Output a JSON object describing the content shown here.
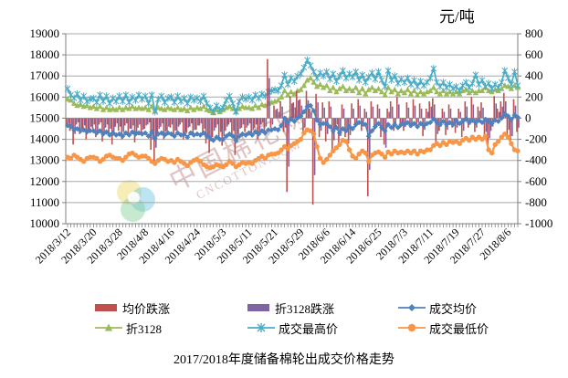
{
  "unit_label": "元/吨",
  "title": "2017/2018年度储备棉轮出成交价格走势",
  "watermark": {
    "cn": "中国棉花网",
    "en": "CNCOTTON.COM"
  },
  "colors": {
    "avg_change": "#C0504D",
    "zhe3128_change": "#8064A2",
    "avg_price": "#4F81BD",
    "zhe3128": "#9BBB59",
    "max_price": "#4BACC6",
    "min_price": "#F79646",
    "gridline": "#a8a8a8",
    "axis": "#7f7f7f"
  },
  "chart_data": {
    "type": "line+bar",
    "title": "2017/2018年度储备棉轮出成交价格走势",
    "unit": "元/吨",
    "grid": true,
    "legend_position": "bottom",
    "left_axis": {
      "min": 10000,
      "max": 19000,
      "step": 1000,
      "ticks": [
        19000,
        18000,
        17000,
        16000,
        15000,
        14000,
        13000,
        12000,
        11000,
        10000
      ]
    },
    "right_axis": {
      "min": -1000,
      "max": 800,
      "step": 200,
      "ticks": [
        800,
        600,
        400,
        200,
        0,
        -200,
        -400,
        -600,
        -800,
        -1000
      ]
    },
    "x_labels": [
      "2018/3/12",
      "2018/3/20",
      "2018/3/28",
      "2018/4/8",
      "2018/4/16",
      "2018/4/24",
      "2018/5/3",
      "2018/5/11",
      "2018/5/21",
      "2018/5/29",
      "2018/6/6",
      "2018/6/14",
      "2018/6/25",
      "2018/7/3",
      "2018/7/11",
      "2018/7/19",
      "2018/7/27",
      "2018/8/6"
    ],
    "label_every": 8,
    "n_points": 140,
    "series": [
      {
        "name": "均价跌涨",
        "type": "bar",
        "axis": "right",
        "color": "#C0504D",
        "marker": "rect",
        "values": [
          -80,
          -120,
          -250,
          -60,
          -150,
          -100,
          -200,
          -120,
          -100,
          -180,
          -60,
          -220,
          -90,
          -160,
          -250,
          -80,
          -120,
          -200,
          -70,
          -150,
          -100,
          -230,
          -90,
          -160,
          -100,
          -60,
          -300,
          -420,
          -150,
          -80,
          -200,
          -120,
          -90,
          -180,
          -120,
          -60,
          -200,
          -140,
          -80,
          -160,
          -110,
          -70,
          -150,
          -240,
          -330,
          -180,
          -90,
          -200,
          -260,
          -120,
          -60,
          -180,
          -350,
          -150,
          -90,
          -130,
          -70,
          -160,
          -90,
          -200,
          -60,
          -120,
          560,
          -90,
          120,
          90,
          160,
          -130,
          -700,
          210,
          150,
          260,
          180,
          -140,
          260,
          90,
          -820,
          230,
          -180,
          150,
          -220,
          160,
          -310,
          -90,
          -260,
          130,
          -180,
          -240,
          140,
          -90,
          180,
          -120,
          90,
          -740,
          160,
          -110,
          130,
          -180,
          -250,
          90,
          160,
          -120,
          200,
          -90,
          -120,
          150,
          -90,
          180,
          -60,
          140,
          -170,
          90,
          160,
          190,
          -230,
          -120,
          90,
          -160,
          130,
          -90,
          -140,
          90,
          -180,
          160,
          -90,
          200,
          -130,
          110,
          150,
          -190,
          -280,
          -120,
          210,
          90,
          160,
          240,
          -160,
          -250,
          180,
          -130
        ]
      },
      {
        "name": "折3128跌涨",
        "type": "bar",
        "axis": "right",
        "color": "#8064A2",
        "marker": "rect",
        "values": [
          -50,
          -90,
          -150,
          -40,
          -100,
          -70,
          -130,
          -80,
          -60,
          -120,
          -40,
          -150,
          -60,
          -100,
          -160,
          -50,
          -80,
          -130,
          -50,
          -100,
          -70,
          -150,
          -60,
          -110,
          -70,
          -40,
          -200,
          -280,
          -100,
          -50,
          -130,
          -80,
          -60,
          -120,
          -80,
          -40,
          -130,
          -90,
          -50,
          -110,
          -70,
          -50,
          -100,
          -160,
          -220,
          -120,
          -60,
          -130,
          -170,
          -80,
          -40,
          -120,
          -230,
          -100,
          -60,
          -90,
          -50,
          -110,
          -60,
          -130,
          -40,
          -80,
          380,
          -60,
          80,
          60,
          110,
          -90,
          -460,
          140,
          100,
          170,
          120,
          -90,
          170,
          60,
          -540,
          150,
          -120,
          100,
          -150,
          110,
          -210,
          -60,
          -170,
          90,
          -120,
          -160,
          90,
          -60,
          120,
          -80,
          60,
          -490,
          110,
          -70,
          90,
          -120,
          -280,
          60,
          110,
          -80,
          130,
          -60,
          -80,
          100,
          -60,
          120,
          -40,
          90,
          -110,
          60,
          110,
          130,
          -150,
          -80,
          60,
          -110,
          90,
          -60,
          -90,
          60,
          -120,
          110,
          -60,
          130,
          -90,
          70,
          100,
          -130,
          -190,
          -80,
          140,
          60,
          110,
          160,
          -110,
          -170,
          120,
          -90
        ]
      },
      {
        "name": "成交均价",
        "type": "line",
        "axis": "left",
        "color": "#4F81BD",
        "marker": "diamond",
        "values": [
          14650,
          14600,
          14450,
          14500,
          14400,
          14450,
          14350,
          14400,
          14400,
          14300,
          14400,
          14250,
          14350,
          14200,
          14300,
          14200,
          14250,
          14150,
          14300,
          14200,
          14350,
          14250,
          14300,
          14250,
          14300,
          14150,
          14350,
          14050,
          14250,
          14300,
          14200,
          14300,
          14250,
          14150,
          14300,
          14200,
          14250,
          14100,
          14300,
          14200,
          14250,
          14200,
          14300,
          14150,
          14050,
          13950,
          14100,
          14000,
          14000,
          14150,
          14250,
          14150,
          13950,
          14150,
          14250,
          14200,
          14300,
          14200,
          14350,
          14250,
          14400,
          14300,
          14450,
          14450,
          14500,
          14450,
          14650,
          15000,
          14800,
          14950,
          14850,
          15000,
          15100,
          15300,
          15550,
          15600,
          15350,
          14900,
          14700,
          14750,
          14750,
          14600,
          14400,
          14550,
          14300,
          14500,
          14400,
          14600,
          14500,
          14700,
          14800,
          14750,
          14700,
          14150,
          14400,
          14600,
          14750,
          14550,
          14400,
          14700,
          14550,
          14700,
          14550,
          14700,
          14700,
          14800,
          14650,
          14750,
          14600,
          14750,
          14650,
          14750,
          14800,
          14950,
          14800,
          14700,
          14850,
          14700,
          14800,
          14700,
          14900,
          14750,
          14850,
          14950,
          14800,
          14900,
          14800,
          14900,
          14800,
          14950,
          14850,
          14750,
          14900,
          14850,
          15000,
          15200,
          15100,
          14950,
          15150,
          15050
        ]
      },
      {
        "name": "折3128",
        "type": "line",
        "axis": "left",
        "color": "#9BBB59",
        "marker": "triangle",
        "values": [
          15900,
          15850,
          15700,
          15600,
          15650,
          15550,
          15600,
          15500,
          15550,
          15450,
          15550,
          15400,
          15500,
          15400,
          15450,
          15400,
          15500,
          15400,
          15500,
          15450,
          15550,
          15450,
          15500,
          15450,
          15500,
          15400,
          15550,
          15350,
          15500,
          15450,
          15400,
          15500,
          15450,
          15400,
          15500,
          15400,
          15450,
          15350,
          15500,
          15400,
          15500,
          15450,
          15550,
          15400,
          15350,
          15250,
          15400,
          15300,
          15400,
          15500,
          15550,
          15450,
          15300,
          15450,
          15550,
          15500,
          15500,
          15450,
          15600,
          15500,
          15650,
          15600,
          15700,
          15750,
          15800,
          15850,
          16000,
          16300,
          16100,
          16250,
          16150,
          16300,
          16350,
          16550,
          16800,
          16900,
          16700,
          16500,
          16600,
          16450,
          16550,
          16300,
          16450,
          16250,
          16400,
          16500,
          16300,
          16400,
          16300,
          16450,
          16200,
          16400,
          16150,
          16350,
          16450,
          16300,
          16400,
          16250,
          16100,
          16450,
          16250,
          16350,
          16150,
          16300,
          16200,
          16350,
          16150,
          16300,
          16100,
          16250,
          16150,
          16250,
          16300,
          16450,
          16250,
          16150,
          16300,
          16150,
          16250,
          16150,
          16250,
          16150,
          16300,
          16350,
          16200,
          16300,
          16200,
          16300,
          16300,
          16450,
          16300,
          16250,
          16350,
          16300,
          16400,
          16550,
          16500,
          16400,
          16550,
          16450
        ]
      },
      {
        "name": "成交最高价",
        "type": "line",
        "axis": "left",
        "color": "#4BACC6",
        "marker": "star",
        "values": [
          16400,
          16100,
          15950,
          16150,
          15850,
          16050,
          15800,
          15900,
          15950,
          15750,
          16100,
          15800,
          16050,
          15700,
          15950,
          15800,
          16050,
          15800,
          16100,
          15750,
          16000,
          15850,
          16100,
          15900,
          16050,
          15700,
          16100,
          15300,
          15900,
          16050,
          15750,
          15950,
          16000,
          15750,
          16050,
          15800,
          15950,
          15700,
          16000,
          15850,
          15950,
          15800,
          16050,
          15700,
          15500,
          15300,
          15600,
          15400,
          15500,
          15850,
          16050,
          15700,
          15300,
          15800,
          16000,
          15900,
          16000,
          15850,
          16100,
          15950,
          16150,
          16050,
          16250,
          16300,
          16350,
          16300,
          16550,
          17050,
          16600,
          16900,
          16750,
          17000,
          17100,
          17400,
          17750,
          17500,
          17200,
          16900,
          17150,
          17000,
          17200,
          16850,
          17100,
          16750,
          17000,
          17250,
          16900,
          17100,
          16950,
          17200,
          16800,
          17050,
          16700,
          16950,
          17150,
          16850,
          17200,
          16800,
          16500,
          17250,
          16800,
          17000,
          16650,
          16850,
          16700,
          16900,
          16600,
          16800,
          16500,
          16750,
          16550,
          16700,
          16900,
          17350,
          16700,
          16500,
          16700,
          16450,
          16600,
          16400,
          16500,
          16300,
          16550,
          16700,
          16450,
          16650,
          17050,
          16600,
          16800,
          16500,
          16650,
          16400,
          16600,
          16450,
          16700,
          17250,
          16900,
          16600,
          17200,
          16550
        ]
      },
      {
        "name": "成交最低价",
        "type": "line",
        "axis": "left",
        "color": "#F79646",
        "marker": "circle",
        "values": [
          13150,
          13100,
          13250,
          13150,
          13050,
          12950,
          13100,
          13150,
          13150,
          13100,
          12950,
          13050,
          13200,
          13250,
          13150,
          13100,
          13100,
          13000,
          13150,
          13300,
          13350,
          13250,
          13150,
          13200,
          13200,
          13100,
          12950,
          12850,
          13000,
          13100,
          13050,
          12950,
          13000,
          12900,
          13050,
          12950,
          12850,
          12750,
          12900,
          13000,
          13050,
          12950,
          12800,
          12700,
          12650,
          12700,
          12800,
          12750,
          12700,
          12800,
          12950,
          12850,
          12700,
          12800,
          12900,
          12850,
          12900,
          12850,
          13000,
          13100,
          13200,
          13100,
          13250,
          13300,
          13300,
          13350,
          13500,
          13650,
          13550,
          13700,
          13800,
          13900,
          14000,
          14300,
          14450,
          14400,
          14250,
          13650,
          13100,
          12900,
          13050,
          13250,
          13450,
          13600,
          13750,
          13950,
          13900,
          13500,
          13200,
          13100,
          13300,
          13450,
          13350,
          12950,
          13250,
          13350,
          13400,
          13300,
          13150,
          13400,
          13300,
          13450,
          13350,
          13400,
          13350,
          13450,
          13350,
          13450,
          13300,
          13450,
          13400,
          13500,
          13500,
          13700,
          13800,
          13700,
          13850,
          13750,
          13900,
          13850,
          13900,
          13800,
          13950,
          14050,
          13950,
          14100,
          14000,
          14100,
          14000,
          14150,
          13500,
          13350,
          13750,
          13900,
          14100,
          14250,
          14100,
          13800,
          13500,
          13450
        ]
      }
    ]
  }
}
